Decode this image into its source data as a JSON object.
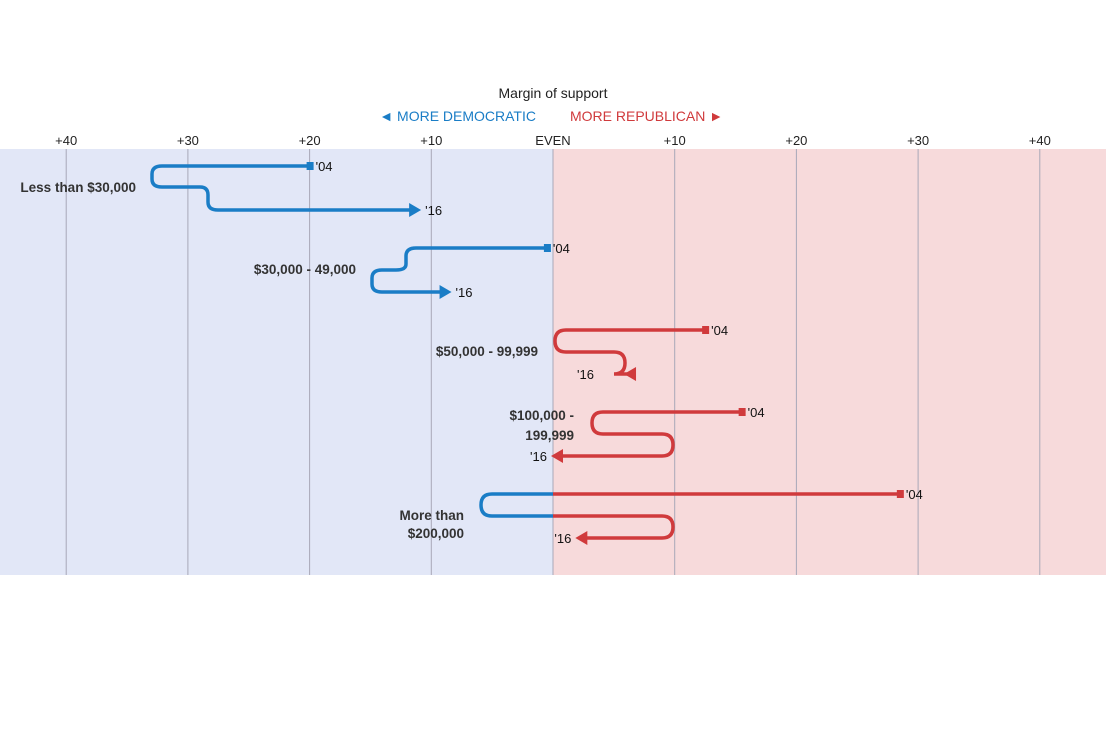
{
  "chart_data": {
    "type": "line",
    "title": "Margin of support",
    "direction_labels": {
      "left": "◄ MORE DEMOCRATIC",
      "right": "MORE REPUBLICAN ►"
    },
    "colors": {
      "democratic": "#1a7dc6",
      "republican": "#d03a3c",
      "democratic_bg": "#e2e7f7",
      "republican_bg": "#f7dadb",
      "grid": "#a8a8b8"
    },
    "xlim": [
      -45,
      45
    ],
    "x_ticks": [
      -40,
      -30,
      -20,
      -10,
      0,
      10,
      20,
      30,
      40
    ],
    "x_tick_labels": [
      "+40",
      "+30",
      "+20",
      "+10",
      "EVEN",
      "+10",
      "+20",
      "+30",
      "+40"
    ],
    "grid": true,
    "year_labels": {
      "start": "'04",
      "end": "'16"
    },
    "groups": [
      {
        "label": [
          "Less than $30,000"
        ],
        "values_2004_2016": [
          -20,
          -11
        ]
      },
      {
        "label": [
          "$30,000 - 49,000"
        ],
        "values_2004_2016": [
          -0.5,
          -8.5
        ]
      },
      {
        "label": [
          "$50,000 - 99,999"
        ],
        "values_2004_2016": [
          12.5,
          6
        ]
      },
      {
        "label": [
          "$100,000 -",
          "199,999"
        ],
        "values_2004_2016": [
          15.5,
          0
        ]
      },
      {
        "label": [
          "More than",
          "$200,000"
        ],
        "values_2004_2016": [
          28.5,
          2
        ]
      }
    ]
  }
}
